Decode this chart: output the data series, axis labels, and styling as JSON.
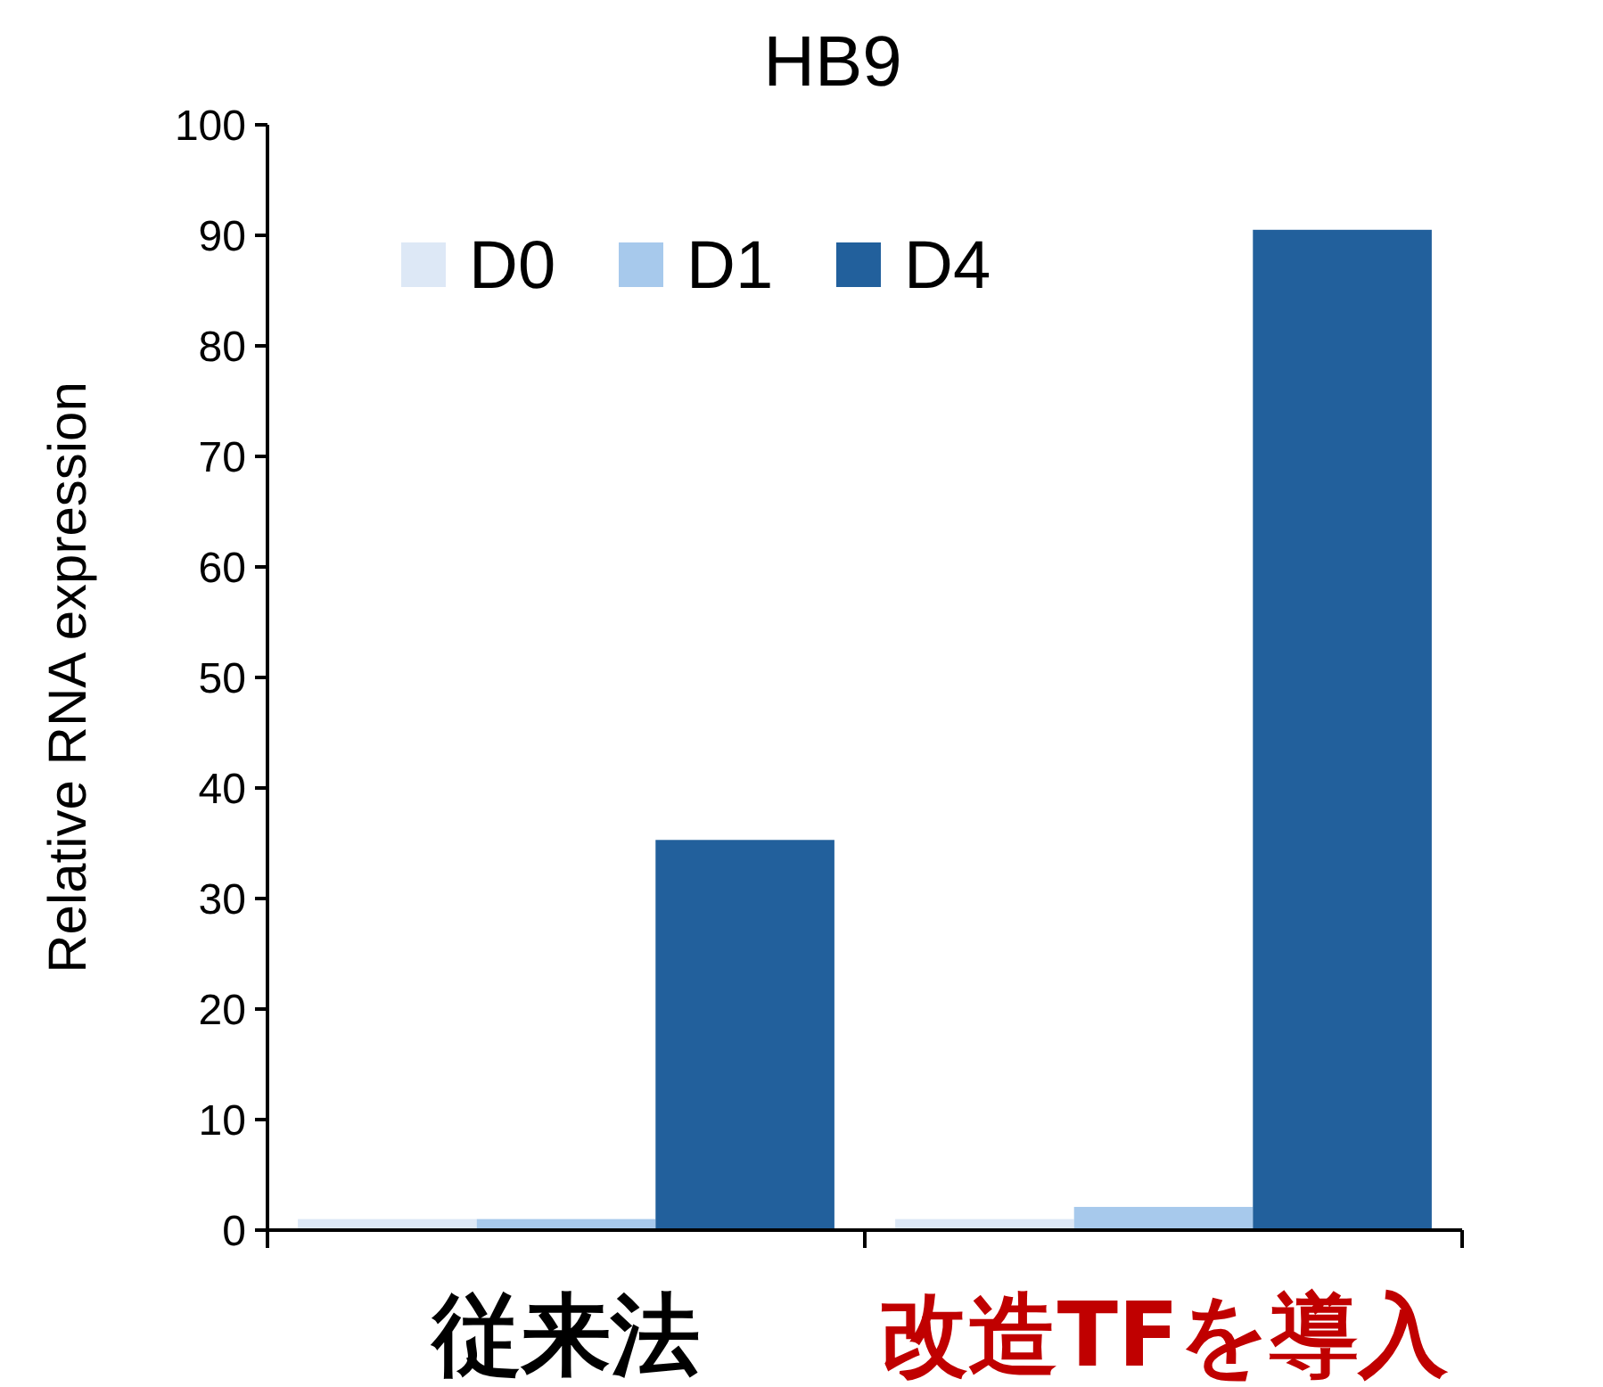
{
  "chart_data": {
    "type": "bar",
    "title": "HB9",
    "ylabel": "Relative  RNA expression",
    "categories": [
      "従来法",
      "改造TFを導入"
    ],
    "series": [
      {
        "name": "D0",
        "color": "#dde8f6",
        "values": [
          1,
          1
        ]
      },
      {
        "name": "D1",
        "color": "#a7c9ec",
        "values": [
          1,
          2.1
        ]
      },
      {
        "name": "D4",
        "color": "#22609c",
        "values": [
          35.3,
          90.5
        ]
      }
    ],
    "ylim": [
      0,
      100
    ],
    "yticks": [
      0,
      10,
      20,
      30,
      40,
      50,
      60,
      70,
      80,
      90,
      100
    ],
    "grid": false,
    "legend": "top left"
  }
}
